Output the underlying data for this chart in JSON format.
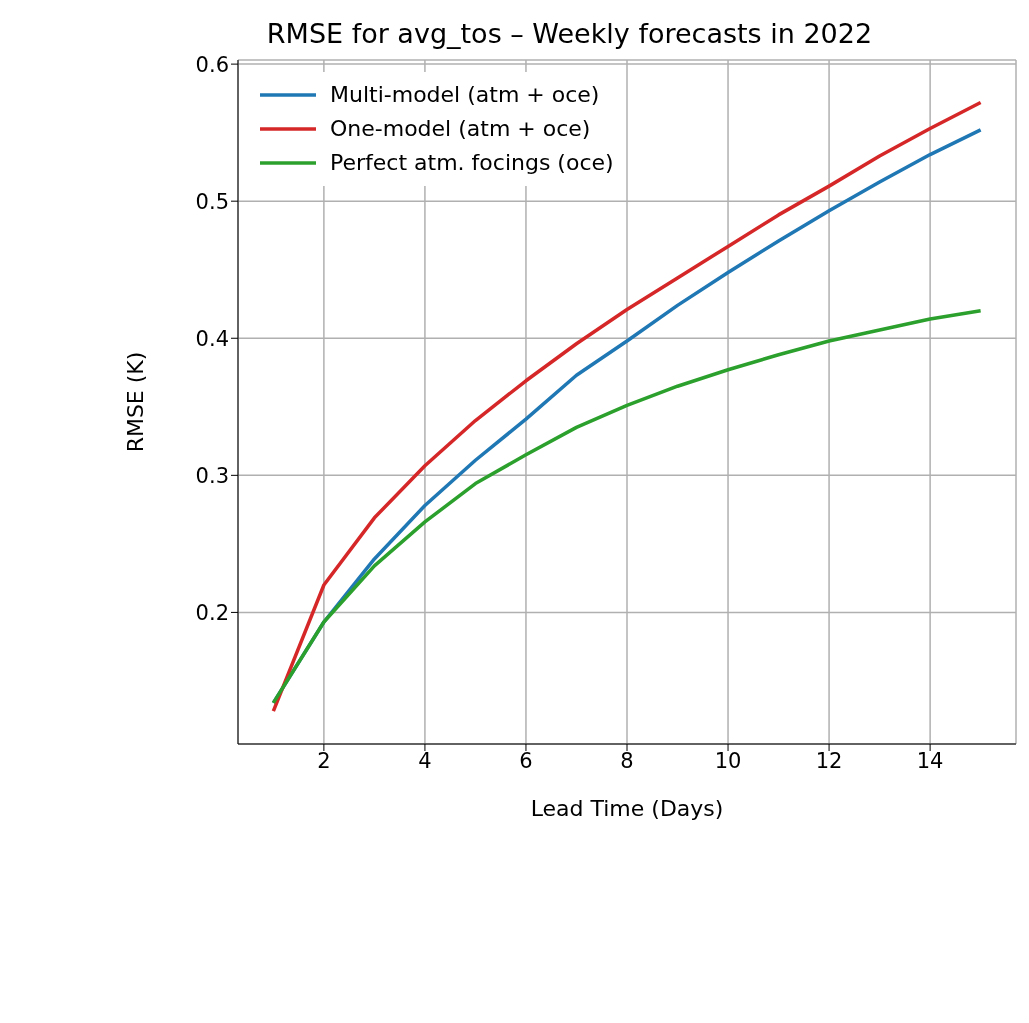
{
  "chart_data": {
    "type": "line",
    "title": "RMSE for avg_tos – Weekly forecasts in 2022",
    "xlabel": "Lead Time (Days)",
    "ylabel": "RMSE (K)",
    "x": [
      1,
      2,
      3,
      4,
      5,
      6,
      7,
      8,
      9,
      10,
      11,
      12,
      13,
      14,
      15
    ],
    "series": [
      {
        "name": "Multi-model (atm + oce)",
        "color": "#1f77b4",
        "values": [
          0.134,
          0.193,
          0.239,
          0.278,
          0.311,
          0.341,
          0.373,
          0.398,
          0.424,
          0.448,
          0.471,
          0.493,
          0.514,
          0.534,
          0.552
        ]
      },
      {
        "name": "One-model (atm + oce)",
        "color": "#d62728",
        "values": [
          0.128,
          0.22,
          0.269,
          0.307,
          0.34,
          0.369,
          0.396,
          0.421,
          0.444,
          0.467,
          0.49,
          0.511,
          0.533,
          0.553,
          0.572
        ]
      },
      {
        "name": "Perfect atm. focings (oce)",
        "color": "#2ca02c",
        "values": [
          0.134,
          0.193,
          0.234,
          0.266,
          0.294,
          0.315,
          0.335,
          0.351,
          0.365,
          0.377,
          0.388,
          0.398,
          0.406,
          0.414,
          0.42
        ]
      }
    ],
    "xlim": [
      0.3,
      15.7
    ],
    "xticks": [
      2,
      4,
      6,
      8,
      10,
      12,
      14
    ],
    "ylim": [
      0.104,
      0.603
    ],
    "yticks": [
      0.2,
      0.3,
      0.4,
      0.5,
      0.6
    ],
    "grid": true,
    "legend": "top left",
    "marker": "none",
    "line_style": "solid"
  }
}
